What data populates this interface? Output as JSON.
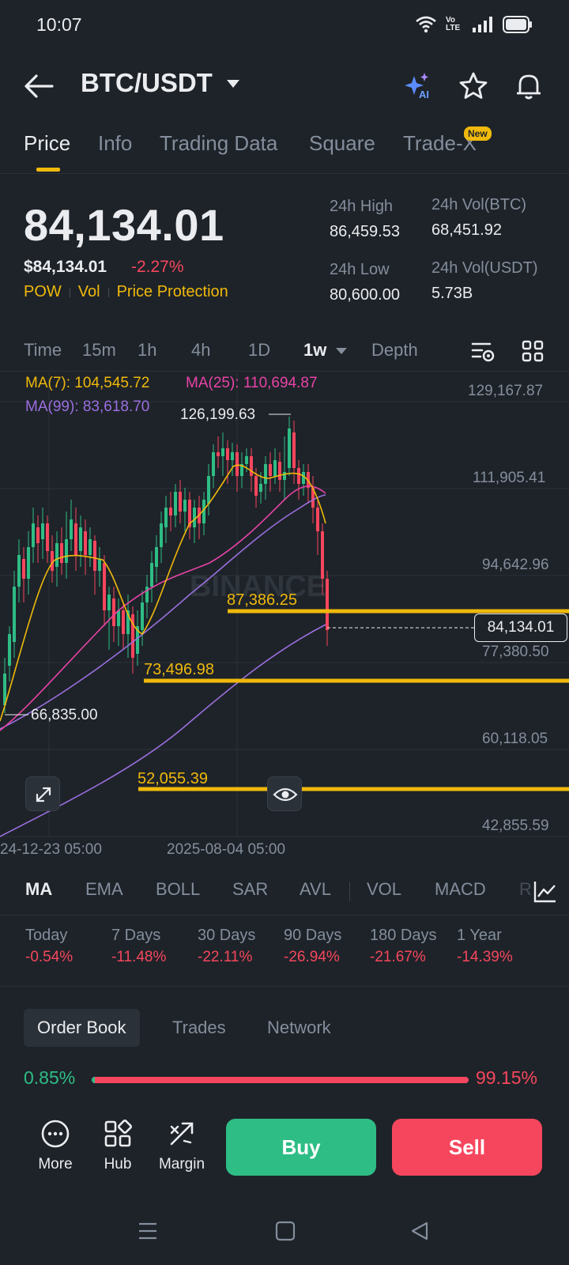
{
  "status": {
    "time": "10:07",
    "network_label": "Vo LTE"
  },
  "header": {
    "pair": "BTC/USDT"
  },
  "tabs": [
    {
      "label": "Price"
    },
    {
      "label": "Info"
    },
    {
      "label": "Trading Data"
    },
    {
      "label": "Square"
    },
    {
      "label": "Trade-X"
    }
  ],
  "new_badge": "New",
  "ticker": {
    "last_price": "84,134.01",
    "usd_price": "$84,134.01",
    "change": "-2.27%",
    "tags": [
      "POW",
      "Vol",
      "Price Protection"
    ],
    "high_label": "24h High",
    "high_value": "86,459.53",
    "low_label": "24h Low",
    "low_value": "80,600.00",
    "vol_btc_label": "24h Vol(BTC)",
    "vol_btc_value": "68,451.92",
    "vol_usdt_label": "24h Vol(USDT)",
    "vol_usdt_value": "5.73B"
  },
  "intervals": [
    "Time",
    "15m",
    "1h",
    "4h",
    "1D",
    "1w",
    "Depth"
  ],
  "chart_data": {
    "type": "candlestick",
    "ma7": "MA(7): 104,545.72",
    "ma25": "MA(25): 110,694.87",
    "ma99": "MA(99): 83,618.70",
    "y_ticks": [
      "129,167.87",
      "111,905.41",
      "94,642.96",
      "77,380.50",
      "60,118.05",
      "42,855.59"
    ],
    "x_ticks": [
      "24-12-23 05:00",
      "2025-08-04 05:00"
    ],
    "high_marker": "126,199.63",
    "low_marker": "66,835.00",
    "last_price_tag": "84,134.01",
    "levels": [
      "87,386.25",
      "73,496.98",
      "52,055.39"
    ],
    "watermark": "BINANCE",
    "colors": {
      "up": "#2ebd85",
      "down": "#f6465d",
      "ma7": "#f0b90b",
      "ma25": "#e843a7",
      "ma99": "#9b6fe0",
      "level": "#f0b90b"
    }
  },
  "indicators": [
    "MA",
    "EMA",
    "BOLL",
    "SAR",
    "AVL",
    "VOL",
    "MACD",
    "R"
  ],
  "performance": [
    {
      "label": "Today",
      "value": "-0.54%"
    },
    {
      "label": "7 Days",
      "value": "-11.48%"
    },
    {
      "label": "30 Days",
      "value": "-22.11%"
    },
    {
      "label": "90 Days",
      "value": "-26.94%"
    },
    {
      "label": "180 Days",
      "value": "-21.67%"
    },
    {
      "label": "1 Year",
      "value": "-14.39%"
    }
  ],
  "orderbook_tabs": [
    "Order Book",
    "Trades",
    "Network"
  ],
  "ratio": {
    "buy": "0.85%",
    "sell": "99.15%",
    "buy_fraction": 0.0085
  },
  "bottom": {
    "more": "More",
    "hub": "Hub",
    "margin": "Margin",
    "buy": "Buy",
    "sell": "Sell"
  },
  "colors": {
    "accent": "#f0b90b",
    "up": "#2ebd85",
    "down": "#f6465d",
    "bg": "#1e2329"
  }
}
